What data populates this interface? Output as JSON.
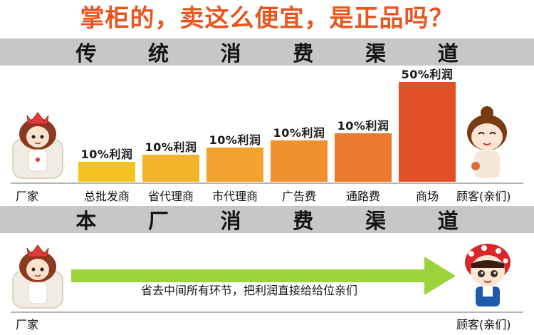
{
  "headline": "掌柜的，卖这么便宜，是正品吗？",
  "traditional_channel": {
    "title_chars": [
      "传",
      "统",
      "消",
      "费",
      "渠",
      "道"
    ],
    "factory_label": "厂家",
    "customer_label": "顾客(亲们)"
  },
  "chart_data": {
    "type": "bar",
    "categories": [
      "总批发商",
      "省代理商",
      "市代理商",
      "广告费",
      "通路费",
      "商场"
    ],
    "values": [
      10,
      10,
      10,
      10,
      10,
      50
    ],
    "data_labels": [
      "10%利润",
      "10%利润",
      "10%利润",
      "10%利润",
      "10%利润",
      "50%利润"
    ],
    "colors": [
      "#f2c320",
      "#f2b52a",
      "#f2a22e",
      "#f0902e",
      "#ec7a2d",
      "#e2502a"
    ]
  },
  "direct_channel": {
    "title_chars": [
      "本",
      "厂",
      "消",
      "费",
      "渠",
      "道"
    ],
    "factory_label": "厂家",
    "customer_label": "顾客(亲们)",
    "arrow_text": "省去中间所有环节，把利润直接给给位亲们",
    "arrow_color": "#9dd33a"
  }
}
